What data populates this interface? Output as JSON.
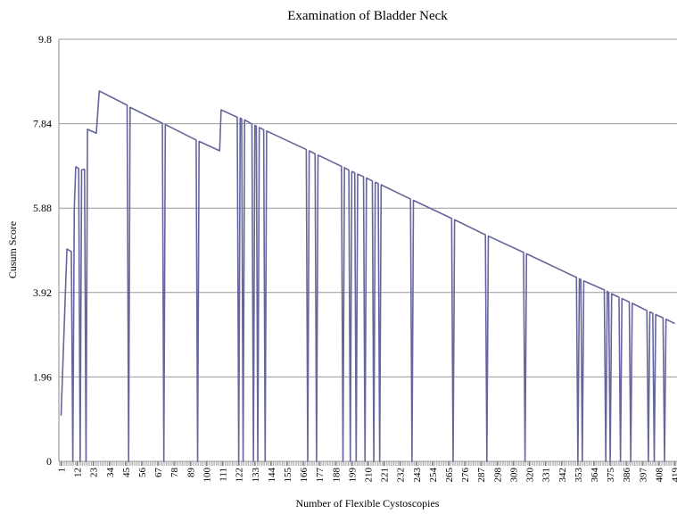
{
  "chart_data": {
    "type": "line",
    "title": "Examination of Bladder Neck",
    "x_label": "Number of Flexible Cystoscopies",
    "y_label": "Cusum Score",
    "xlim": [
      -0.5,
      420.5
    ],
    "xticks": [
      1,
      12,
      23,
      34,
      45,
      56,
      67,
      78,
      89,
      100,
      111,
      122,
      133,
      144,
      155,
      166,
      177,
      188,
      199,
      210,
      221,
      232,
      243,
      254,
      265,
      276,
      287,
      298,
      309,
      320,
      331,
      342,
      353,
      364,
      375,
      386,
      397,
      408,
      419
    ],
    "ylim": [
      0,
      9.8
    ],
    "yticks": [
      0,
      1.96,
      3.92,
      5.88,
      7.84,
      9.8
    ],
    "grid": true,
    "series": [
      {
        "name": "Cusum Score",
        "color": "#66669c",
        "x": [
          1,
          5,
          8,
          9,
          10,
          11,
          13,
          14,
          15,
          17,
          18,
          19,
          25,
          27,
          46,
          47,
          48,
          70,
          71,
          72,
          93,
          94,
          95,
          109,
          110,
          121,
          122,
          123,
          124,
          125,
          126,
          131,
          132,
          133,
          134,
          135,
          136,
          139,
          140,
          141,
          168,
          169,
          170,
          174,
          175,
          176,
          192,
          193,
          194,
          197,
          198,
          199,
          201,
          202,
          203,
          207,
          208,
          209,
          213,
          214,
          215,
          217,
          218,
          219,
          239,
          240,
          241,
          267,
          268,
          269,
          290,
          291,
          292,
          316,
          317,
          318,
          352,
          353,
          354,
          355,
          356,
          357,
          371,
          372,
          373,
          374,
          375,
          376,
          381,
          382,
          383,
          388,
          389,
          390,
          400,
          401,
          402,
          404,
          405,
          406,
          411,
          412,
          413,
          419
        ],
        "values": [
          1.06,
          4.93,
          4.87,
          0,
          5.88,
          6.84,
          6.8,
          0,
          6.77,
          6.78,
          0,
          7.71,
          7.62,
          8.6,
          8.27,
          0,
          8.22,
          7.85,
          0,
          7.82,
          7.46,
          0,
          7.43,
          7.21,
          8.16,
          7.99,
          0,
          7.97,
          7.95,
          0,
          7.93,
          7.83,
          0,
          7.8,
          7.78,
          0,
          7.75,
          7.7,
          0,
          7.67,
          7.24,
          0,
          7.21,
          7.14,
          0,
          7.11,
          6.85,
          0,
          6.82,
          6.76,
          0,
          6.73,
          6.7,
          0,
          6.67,
          6.61,
          0,
          6.58,
          6.51,
          0,
          6.48,
          6.45,
          0,
          6.42,
          6.09,
          0,
          6.06,
          5.64,
          0,
          5.61,
          5.26,
          0,
          5.23,
          4.85,
          0,
          4.82,
          4.27,
          0,
          4.24,
          4.22,
          0,
          4.19,
          3.98,
          0,
          3.95,
          3.92,
          0,
          3.89,
          3.81,
          0,
          3.78,
          3.7,
          0,
          3.67,
          3.5,
          0,
          3.47,
          3.44,
          0,
          3.41,
          3.33,
          0,
          3.3,
          3.2
        ]
      }
    ]
  }
}
